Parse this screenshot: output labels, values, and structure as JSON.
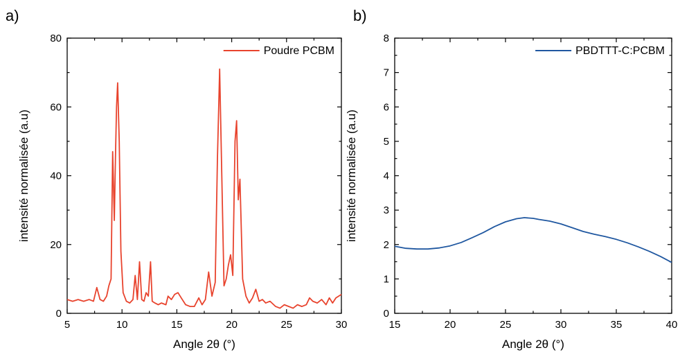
{
  "chart_data": [
    {
      "panel_label": "a)",
      "type": "line",
      "xlabel": "Angle 2θ (°)",
      "ylabel": "intensité normalisée (a.u)",
      "xlim": [
        5,
        30
      ],
      "ylim": [
        0,
        80
      ],
      "xticks": [
        5,
        10,
        15,
        20,
        25,
        30
      ],
      "yticks": [
        0,
        20,
        40,
        60,
        80
      ],
      "grid": false,
      "legend_position": "top-right",
      "series": [
        {
          "name": "Poudre PCBM",
          "color": "#e8432d",
          "x": [
            5.0,
            5.5,
            6.0,
            6.5,
            7.0,
            7.4,
            7.7,
            8.0,
            8.3,
            8.6,
            8.8,
            9.0,
            9.15,
            9.3,
            9.4,
            9.5,
            9.6,
            9.75,
            9.9,
            10.1,
            10.4,
            10.7,
            11.0,
            11.2,
            11.4,
            11.6,
            11.8,
            12.0,
            12.2,
            12.4,
            12.6,
            12.75,
            13.0,
            13.3,
            13.6,
            14.0,
            14.2,
            14.5,
            14.8,
            15.1,
            15.4,
            15.8,
            16.2,
            16.6,
            17.0,
            17.3,
            17.6,
            17.9,
            18.2,
            18.5,
            18.7,
            18.9,
            19.1,
            19.3,
            19.5,
            19.7,
            19.9,
            20.1,
            20.3,
            20.45,
            20.6,
            20.75,
            21.0,
            21.3,
            21.6,
            21.9,
            22.2,
            22.5,
            22.8,
            23.1,
            23.5,
            24.0,
            24.4,
            24.8,
            25.2,
            25.6,
            26.0,
            26.4,
            26.8,
            27.1,
            27.4,
            27.8,
            28.2,
            28.6,
            28.9,
            29.2,
            29.5,
            30.0
          ],
          "y": [
            4,
            3.5,
            4,
            3.5,
            4,
            3.5,
            7.5,
            4,
            3.5,
            5,
            8,
            10,
            47,
            27,
            45,
            60,
            67,
            50,
            18,
            6,
            3.5,
            3,
            4,
            11,
            4,
            15,
            4,
            3.5,
            6,
            5,
            15,
            3.5,
            3,
            2.5,
            3,
            2.5,
            5,
            4,
            5.5,
            6,
            4.5,
            2.5,
            2,
            2,
            4.5,
            2.5,
            4,
            12,
            5,
            9,
            45,
            71,
            40,
            8,
            10,
            14,
            17,
            11,
            50,
            56,
            33,
            39,
            10,
            5,
            3,
            4.5,
            7,
            3.5,
            4,
            3,
            3.5,
            2,
            1.5,
            2.5,
            2,
            1.5,
            2.5,
            2,
            2.5,
            4.5,
            3.5,
            3,
            4,
            2.5,
            4.5,
            3,
            4.5,
            5.5
          ]
        }
      ]
    },
    {
      "panel_label": "b)",
      "type": "line",
      "xlabel": "Angle 2θ (°)",
      "ylabel": "intensité normalisée (a.u)",
      "xlim": [
        15,
        40
      ],
      "ylim": [
        0,
        8
      ],
      "xticks": [
        15,
        20,
        25,
        30,
        35,
        40
      ],
      "yticks": [
        0,
        1,
        2,
        3,
        4,
        5,
        6,
        7,
        8
      ],
      "grid": false,
      "legend_position": "top-right",
      "series": [
        {
          "name": "PBDTTT-C:PCBM",
          "color": "#1f57a0",
          "x": [
            15.0,
            16.0,
            17.0,
            18.0,
            19.0,
            20.0,
            21.0,
            22.0,
            23.0,
            24.0,
            25.0,
            26.0,
            26.7,
            27.5,
            28.0,
            29.0,
            30.0,
            31.0,
            32.0,
            33.0,
            34.0,
            35.0,
            36.0,
            37.0,
            38.0,
            39.0,
            40.0
          ],
          "y": [
            1.95,
            1.89,
            1.87,
            1.87,
            1.9,
            1.96,
            2.06,
            2.2,
            2.35,
            2.52,
            2.66,
            2.75,
            2.78,
            2.76,
            2.73,
            2.68,
            2.6,
            2.49,
            2.38,
            2.3,
            2.23,
            2.15,
            2.05,
            1.93,
            1.8,
            1.65,
            1.48
          ]
        }
      ]
    }
  ]
}
